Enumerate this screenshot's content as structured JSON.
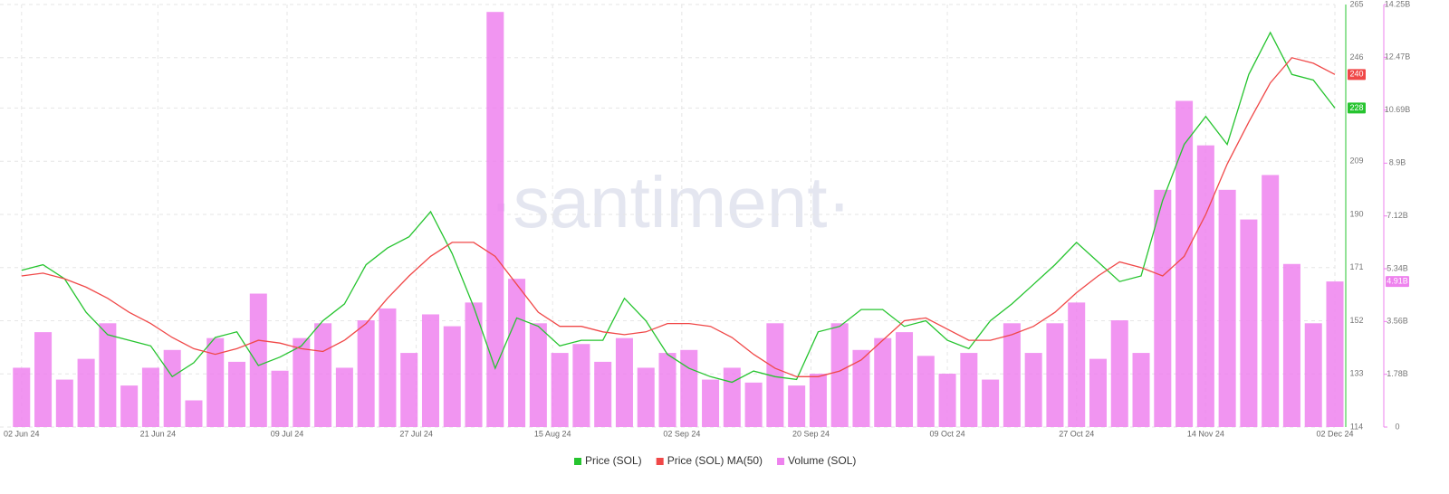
{
  "chart_data": {
    "type": "line",
    "watermark": "·santiment·",
    "x": [
      "2024-06-02",
      "2024-06-05",
      "2024-06-08",
      "2024-06-11",
      "2024-06-14",
      "2024-06-17",
      "2024-06-20",
      "2024-06-23",
      "2024-06-26",
      "2024-06-29",
      "2024-07-02",
      "2024-07-05",
      "2024-07-08",
      "2024-07-11",
      "2024-07-14",
      "2024-07-17",
      "2024-07-20",
      "2024-07-23",
      "2024-07-26",
      "2024-07-29",
      "2024-08-01",
      "2024-08-04",
      "2024-08-07",
      "2024-08-10",
      "2024-08-13",
      "2024-08-16",
      "2024-08-19",
      "2024-08-22",
      "2024-08-25",
      "2024-08-28",
      "2024-08-31",
      "2024-09-03",
      "2024-09-06",
      "2024-09-09",
      "2024-09-12",
      "2024-09-15",
      "2024-09-18",
      "2024-09-21",
      "2024-09-24",
      "2024-09-27",
      "2024-09-30",
      "2024-10-03",
      "2024-10-06",
      "2024-10-09",
      "2024-10-12",
      "2024-10-15",
      "2024-10-18",
      "2024-10-21",
      "2024-10-24",
      "2024-10-27",
      "2024-10-30",
      "2024-11-02",
      "2024-11-05",
      "2024-11-08",
      "2024-11-11",
      "2024-11-14",
      "2024-11-17",
      "2024-11-20",
      "2024-11-23",
      "2024-11-26",
      "2024-11-29",
      "2024-12-02"
    ],
    "xlim": [
      "2024-05-30",
      "2024-12-02"
    ],
    "xticks": [
      {
        "value": "2024-06-02",
        "label": "02 Jun 24"
      },
      {
        "value": "2024-06-21",
        "label": "21 Jun 24"
      },
      {
        "value": "2024-07-09",
        "label": "09 Jul 24"
      },
      {
        "value": "2024-07-27",
        "label": "27 Jul 24"
      },
      {
        "value": "2024-08-15",
        "label": "15 Aug 24"
      },
      {
        "value": "2024-09-02",
        "label": "02 Sep 24"
      },
      {
        "value": "2024-09-20",
        "label": "20 Sep 24"
      },
      {
        "value": "2024-10-09",
        "label": "09 Oct 24"
      },
      {
        "value": "2024-10-27",
        "label": "27 Oct 24"
      },
      {
        "value": "2024-11-14",
        "label": "14 Nov 24"
      },
      {
        "value": "2024-12-02",
        "label": "02 Dec 24"
      }
    ],
    "ylim": [
      114,
      265
    ],
    "yticks": [
      114,
      133,
      152,
      171,
      190,
      209,
      228,
      246,
      265
    ],
    "y2lim": [
      0,
      14.25
    ],
    "y2ticks": [
      0,
      {
        "value": 1.78,
        "label": "1.78B"
      },
      {
        "value": 3.56,
        "label": "3.56B"
      },
      {
        "value": 5.34,
        "label": "5.34B"
      },
      {
        "value": 7.12,
        "label": "7.12B"
      },
      {
        "value": 8.9,
        "label": "8.9B"
      },
      {
        "value": 10.69,
        "label": "10.69B"
      },
      {
        "value": 12.47,
        "label": "12.47B"
      },
      {
        "value": 14.25,
        "label": "14.25B"
      }
    ],
    "grid": true,
    "series": [
      {
        "name": "Price (SOL)",
        "color": "#26c42f",
        "last_label": "228",
        "values": [
          170,
          172,
          167,
          155,
          147,
          145,
          143,
          132,
          137,
          146,
          148,
          136,
          139,
          143,
          152,
          158,
          172,
          178,
          182,
          191,
          176,
          157,
          135,
          153,
          150,
          143,
          145,
          145,
          160,
          152,
          140,
          135,
          132,
          130,
          134,
          132,
          131,
          148,
          150,
          156,
          156,
          150,
          152,
          145,
          142,
          152,
          158,
          165,
          172,
          180,
          173,
          166,
          168,
          195,
          215,
          225,
          215,
          240,
          255,
          240,
          238,
          228
        ]
      },
      {
        "name": "Price (SOL) MA(50)",
        "color": "#f04848",
        "last_label": "240",
        "values": [
          168,
          169,
          167,
          164,
          160,
          155,
          151,
          146,
          142,
          140,
          142,
          145,
          144,
          142,
          141,
          145,
          151,
          160,
          168,
          175,
          180,
          180,
          175,
          165,
          155,
          150,
          150,
          148,
          147,
          148,
          151,
          151,
          150,
          146,
          140,
          135,
          132,
          132,
          134,
          138,
          145,
          152,
          153,
          149,
          145,
          145,
          147,
          150,
          155,
          162,
          168,
          173,
          171,
          168,
          175,
          190,
          208,
          223,
          237,
          246,
          244,
          240
        ]
      },
      {
        "name": "Volume (SOL)",
        "color": "#ee82ee",
        "axis": "y2",
        "type": "bar",
        "last_label": "4.91B",
        "values": [
          2.0,
          3.2,
          1.6,
          2.3,
          3.5,
          1.4,
          2.0,
          2.6,
          0.9,
          3.0,
          2.2,
          4.5,
          1.9,
          3.0,
          3.5,
          2.0,
          3.6,
          4.0,
          2.5,
          3.8,
          3.4,
          4.2,
          14.0,
          5.0,
          3.5,
          2.5,
          2.8,
          2.2,
          3.0,
          2.0,
          2.5,
          2.6,
          1.6,
          2.0,
          1.5,
          3.5,
          1.4,
          1.8,
          3.5,
          2.6,
          3.0,
          3.2,
          2.4,
          1.8,
          2.5,
          1.6,
          3.5,
          2.5,
          3.5,
          4.2,
          2.3,
          3.6,
          2.5,
          8.0,
          11.0,
          9.5,
          8.0,
          7.0,
          8.5,
          5.5,
          3.5,
          4.91
        ]
      }
    ]
  }
}
